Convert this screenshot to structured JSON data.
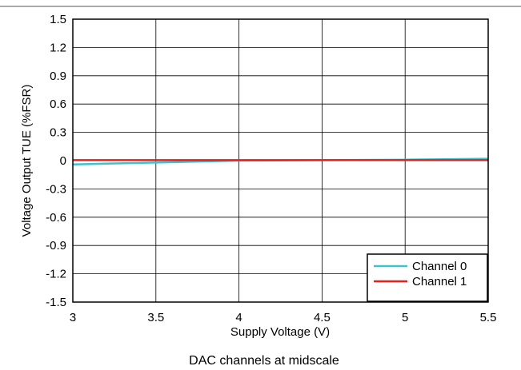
{
  "chart_data": {
    "type": "line",
    "title": "",
    "xlabel": "Supply Voltage (V)",
    "ylabel": "Voltage Output TUE (%FSR)",
    "caption": "DAC channels at midscale",
    "xlim": [
      3,
      5.5
    ],
    "ylim": [
      -1.5,
      1.5
    ],
    "x_ticks": [
      "3",
      "3.5",
      "4",
      "4.5",
      "5",
      "5.5"
    ],
    "y_ticks": [
      "1.5",
      "1.2",
      "0.9",
      "0.6",
      "0.3",
      "0",
      "-0.3",
      "-0.6",
      "-0.9",
      "-1.2",
      "-1.5"
    ],
    "grid": true,
    "legend_position": "bottom-right",
    "series": [
      {
        "name": "Channel 0",
        "color": "#3fc1d0",
        "x": [
          3.0,
          3.5,
          4.0,
          4.5,
          5.0,
          5.5
        ],
        "y": [
          -0.04,
          -0.02,
          0.0,
          0.005,
          0.01,
          0.02
        ]
      },
      {
        "name": "Channel 1",
        "color": "#e8201c",
        "x": [
          3.0,
          3.5,
          4.0,
          4.5,
          5.0,
          5.5
        ],
        "y": [
          0.005,
          0.005,
          0.005,
          0.005,
          0.005,
          0.005
        ]
      }
    ]
  }
}
